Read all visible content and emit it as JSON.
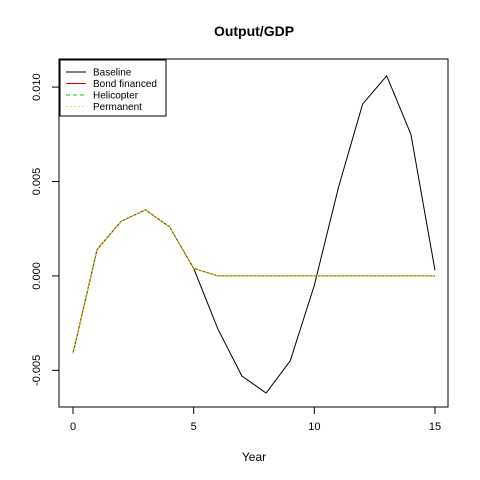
{
  "chart_data": {
    "type": "line",
    "title": "Output/GDP",
    "xlabel": "Year",
    "ylabel": "",
    "xlim": [
      0,
      15
    ],
    "ylim": [
      -0.0062,
      0.0108
    ],
    "xticks": [
      0,
      5,
      10,
      15
    ],
    "xtick_labels": [
      "0",
      "5",
      "10",
      "15"
    ],
    "yticks": [
      -0.005,
      0.0,
      0.005,
      0.01
    ],
    "ytick_labels": [
      "-0.005",
      "0.000",
      "0.005",
      "0.010"
    ],
    "grid": false,
    "legend_position": "top-left",
    "x": [
      0,
      1,
      2,
      3,
      4,
      5,
      6,
      7,
      8,
      9,
      10,
      11,
      12,
      13,
      14,
      15
    ],
    "series": [
      {
        "name": "Baseline",
        "color": "#000000",
        "dash": "solid",
        "values": [
          -0.0041,
          0.0014,
          0.0029,
          0.0035,
          0.0026,
          0.0004,
          -0.0028,
          -0.0053,
          -0.0062,
          -0.0045,
          -0.0005,
          0.0047,
          0.0091,
          0.0106,
          0.0075,
          0.0003
        ]
      },
      {
        "name": "Bond financed",
        "color": "#ff0000",
        "dash": "solid",
        "values": [
          -0.0041,
          0.0014,
          0.0029,
          0.0035,
          0.0026,
          0.0004,
          0.0,
          0.0,
          0.0,
          0.0,
          0.0,
          0.0,
          0.0,
          0.0,
          0.0,
          0.0
        ]
      },
      {
        "name": "Helicopter",
        "color": "#00cc00",
        "dash": "dashed",
        "values": [
          -0.0041,
          0.0014,
          0.0029,
          0.0035,
          0.0026,
          0.0004,
          0.0,
          0.0,
          0.0,
          0.0,
          0.0,
          0.0,
          0.0,
          0.0,
          0.0,
          0.0
        ]
      },
      {
        "name": "Permanent",
        "color": "#e6e600",
        "dash": "dotted",
        "values": [
          -0.0041,
          0.0014,
          0.0029,
          0.0035,
          0.0026,
          0.0004,
          0.0,
          0.0,
          0.0,
          0.0,
          0.0,
          0.0,
          0.0,
          0.0,
          0.0,
          0.0
        ]
      }
    ]
  }
}
